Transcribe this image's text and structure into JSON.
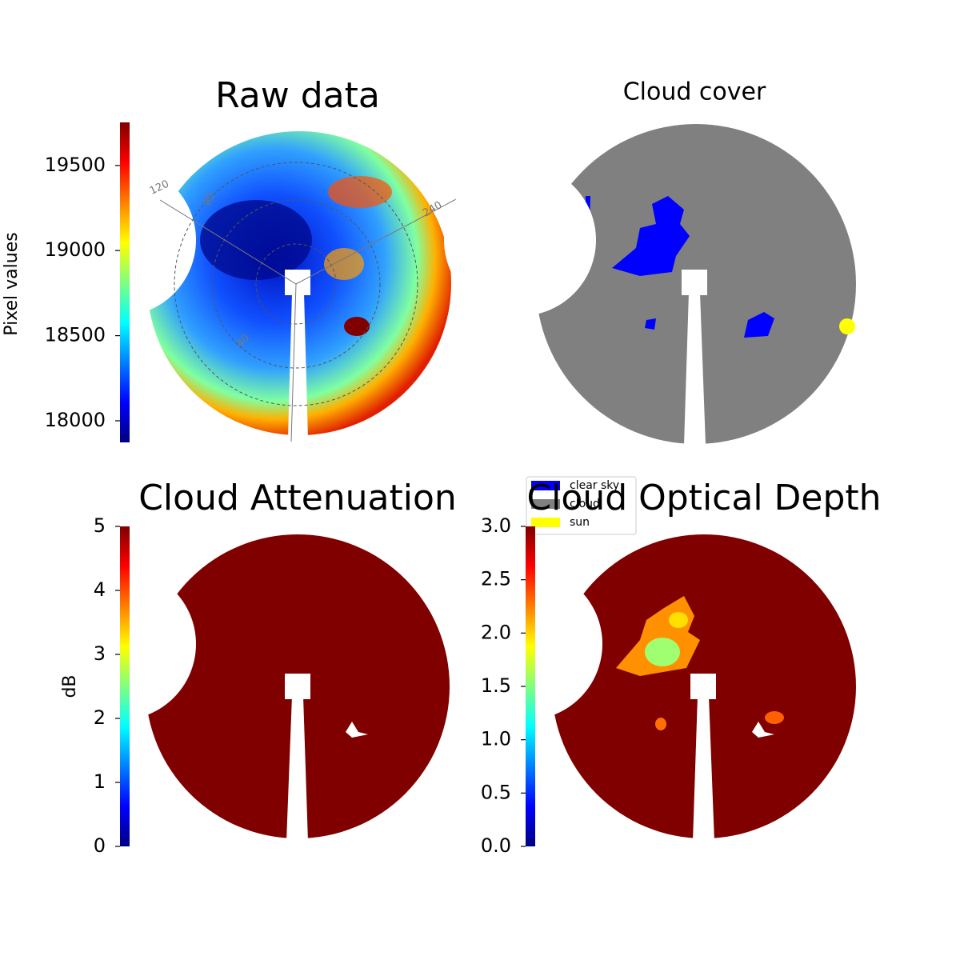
{
  "chart_data": [
    {
      "type": "image",
      "title": "Raw data",
      "ylabel": "Pixel values",
      "colormap": "jet",
      "ylim": [
        17873,
        19753
      ],
      "yticks": [
        18000,
        18500,
        19000,
        19500
      ],
      "polar_labels": [
        "120",
        "80",
        "40",
        "240"
      ]
    },
    {
      "type": "image",
      "title": "Cloud cover",
      "legend": [
        {
          "name": "clear sky",
          "color": "#0000ff"
        },
        {
          "name": "cloud",
          "color": "#808080"
        },
        {
          "name": "sun",
          "color": "#ffff00"
        }
      ]
    },
    {
      "type": "image",
      "title": "Cloud Attenuation",
      "ylabel": "dB",
      "colormap": "jet",
      "ylim": [
        0,
        5
      ],
      "yticks": [
        0,
        1,
        2,
        3,
        4,
        5
      ]
    },
    {
      "type": "image",
      "title": "Cloud Optical Depth",
      "colormap": "jet",
      "ylim": [
        0,
        3
      ],
      "yticks": [
        {
          "value": 0,
          "label": "0.0"
        },
        0.5,
        {
          "value": 1,
          "label": "1.0"
        },
        1.5,
        {
          "value": 2,
          "label": "2.0"
        },
        2.5,
        {
          "value": 3,
          "label": "3.0"
        }
      ]
    }
  ]
}
